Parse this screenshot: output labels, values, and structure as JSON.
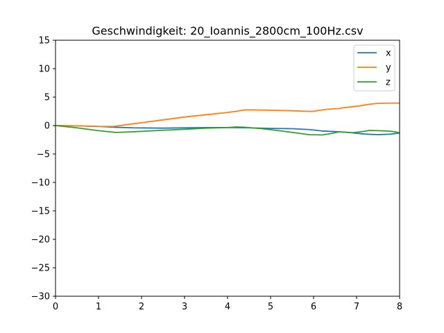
{
  "chart_data": {
    "type": "line",
    "title": "Geschwindigkeit: 20_Ioannis_2800cm_100Hz.csv",
    "xlabel": "",
    "ylabel": "",
    "xlim": [
      0,
      8
    ],
    "ylim": [
      -30,
      15
    ],
    "xticks": [
      "0",
      "1",
      "2",
      "3",
      "4",
      "5",
      "6",
      "7",
      "8"
    ],
    "yticks": [
      "−30",
      "−25",
      "−20",
      "−15",
      "−10",
      "−5",
      "0",
      "5",
      "10",
      "15"
    ],
    "grid": false,
    "legend": "top-right",
    "series": [
      {
        "name": "x",
        "color": "#1f77b4",
        "points": [
          [
            0,
            0
          ],
          [
            0.5,
            -0.05
          ],
          [
            1.0,
            -0.15
          ],
          [
            1.4,
            -0.3
          ],
          [
            1.8,
            -0.4
          ],
          [
            2.5,
            -0.45
          ],
          [
            3.0,
            -0.4
          ],
          [
            3.5,
            -0.35
          ],
          [
            4.0,
            -0.35
          ],
          [
            4.5,
            -0.4
          ],
          [
            5.0,
            -0.5
          ],
          [
            5.5,
            -0.55
          ],
          [
            5.9,
            -0.7
          ],
          [
            6.2,
            -0.95
          ],
          [
            6.5,
            -1.05
          ],
          [
            6.8,
            -1.2
          ],
          [
            7.0,
            -1.35
          ],
          [
            7.2,
            -1.5
          ],
          [
            7.5,
            -1.6
          ],
          [
            7.8,
            -1.5
          ],
          [
            8.0,
            -1.3
          ]
        ]
      },
      {
        "name": "y",
        "color": "#ff7f0e",
        "points": [
          [
            0,
            0
          ],
          [
            0.5,
            -0.05
          ],
          [
            1.0,
            -0.15
          ],
          [
            1.35,
            -0.15
          ],
          [
            1.6,
            0.1
          ],
          [
            2.0,
            0.5
          ],
          [
            2.5,
            1.0
          ],
          [
            3.0,
            1.5
          ],
          [
            3.5,
            1.9
          ],
          [
            4.0,
            2.3
          ],
          [
            4.2,
            2.5
          ],
          [
            4.4,
            2.75
          ],
          [
            4.6,
            2.75
          ],
          [
            5.0,
            2.7
          ],
          [
            5.5,
            2.6
          ],
          [
            5.9,
            2.5
          ],
          [
            6.0,
            2.5
          ],
          [
            6.15,
            2.7
          ],
          [
            6.3,
            2.85
          ],
          [
            6.6,
            3.0
          ],
          [
            6.7,
            3.15
          ],
          [
            6.9,
            3.3
          ],
          [
            7.1,
            3.5
          ],
          [
            7.3,
            3.75
          ],
          [
            7.5,
            3.9
          ],
          [
            7.8,
            3.95
          ],
          [
            8.0,
            3.95
          ]
        ]
      },
      {
        "name": "z",
        "color": "#2ca02c",
        "points": [
          [
            0,
            0
          ],
          [
            0.5,
            -0.4
          ],
          [
            1.0,
            -0.9
          ],
          [
            1.4,
            -1.2
          ],
          [
            1.8,
            -1.1
          ],
          [
            2.3,
            -0.9
          ],
          [
            3.0,
            -0.65
          ],
          [
            3.5,
            -0.45
          ],
          [
            4.0,
            -0.35
          ],
          [
            4.2,
            -0.25
          ],
          [
            4.4,
            -0.3
          ],
          [
            4.8,
            -0.55
          ],
          [
            5.2,
            -0.9
          ],
          [
            5.6,
            -1.3
          ],
          [
            5.9,
            -1.6
          ],
          [
            6.2,
            -1.65
          ],
          [
            6.4,
            -1.4
          ],
          [
            6.6,
            -1.1
          ],
          [
            6.7,
            -1.15
          ],
          [
            6.9,
            -1.25
          ],
          [
            7.1,
            -1.1
          ],
          [
            7.3,
            -0.85
          ],
          [
            7.5,
            -0.9
          ],
          [
            7.7,
            -0.95
          ],
          [
            7.85,
            -1.05
          ],
          [
            8.0,
            -1.25
          ]
        ]
      }
    ]
  }
}
